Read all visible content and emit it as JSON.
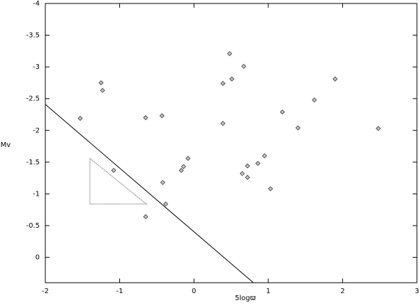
{
  "chart_data": {
    "type": "scatter",
    "x_label": "5logϖ",
    "y_label": "Mv",
    "xlim": [
      -2,
      3
    ],
    "ylim": [
      0.4,
      -4
    ],
    "xticks": [
      -2,
      -1,
      0,
      1,
      2,
      3
    ],
    "yticks": [
      -4,
      -3.5,
      -3,
      -2.5,
      -2,
      -1.5,
      -1,
      -0.5,
      0
    ],
    "x": [
      -1.53,
      -1.25,
      -1.23,
      -1.08,
      -0.65,
      -0.43,
      -0.42,
      -0.38,
      -0.65,
      -0.17,
      -0.14,
      -0.08,
      0.39,
      0.39,
      0.48,
      0.51,
      0.67,
      0.65,
      0.72,
      0.72,
      0.86,
      0.95,
      1.03,
      1.19,
      1.4,
      1.62,
      1.9,
      2.48
    ],
    "y": [
      -2.19,
      -2.75,
      -2.63,
      -1.37,
      -2.2,
      -2.23,
      -1.18,
      -0.84,
      -0.64,
      -1.37,
      -1.43,
      -1.56,
      -2.74,
      -2.11,
      -3.21,
      -2.81,
      -3.01,
      -1.32,
      -1.44,
      -1.26,
      -1.48,
      -1.6,
      -1.08,
      -2.29,
      -2.04,
      -2.48,
      -2.81,
      -2.03
    ],
    "color": "#c8c8c8",
    "reference_line": {
      "x": [
        -2,
        0.8
      ],
      "y": [
        -2.41,
        0.4
      ]
    },
    "triangle": {
      "x": [
        -1.4,
        -1.4,
        -0.64,
        -1.4
      ],
      "y": [
        -1.56,
        -0.84,
        -0.84,
        -1.56
      ]
    }
  }
}
